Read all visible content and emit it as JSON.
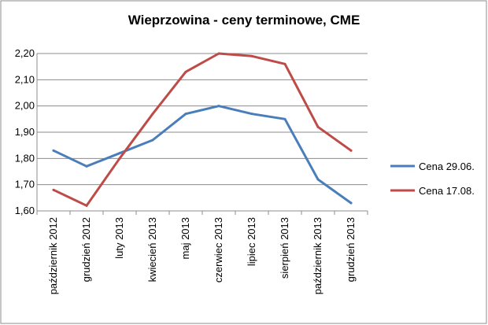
{
  "chart_data": {
    "type": "line",
    "title": "Wieprzowina - ceny terminowe, CME",
    "xlabel": "",
    "ylabel": "",
    "categories": [
      "październik 2012",
      "grudzień 2012",
      "luty 2013",
      "kwiecień 2013",
      "maj 2013",
      "czerwiec 2013",
      "lipiec 2013",
      "sierpień 2013",
      "październik 2013",
      "grudzień 2013"
    ],
    "ylim": [
      1.6,
      2.2
    ],
    "yticks": [
      "1,60",
      "1,70",
      "1,80",
      "1,90",
      "2,00",
      "2,10",
      "2,20"
    ],
    "ytick_values": [
      1.6,
      1.7,
      1.8,
      1.9,
      2.0,
      2.1,
      2.2
    ],
    "grid": true,
    "legend_position": "right",
    "series": [
      {
        "name": "Cena 29.06.",
        "color": "#4a7ebb",
        "values": [
          1.83,
          1.77,
          1.82,
          1.87,
          1.97,
          2.0,
          1.97,
          1.95,
          1.72,
          1.63
        ]
      },
      {
        "name": "Cena 17.08.",
        "color": "#be4b48",
        "values": [
          1.68,
          1.62,
          1.8,
          1.97,
          2.13,
          2.2,
          2.19,
          2.16,
          1.92,
          1.83
        ]
      }
    ]
  }
}
